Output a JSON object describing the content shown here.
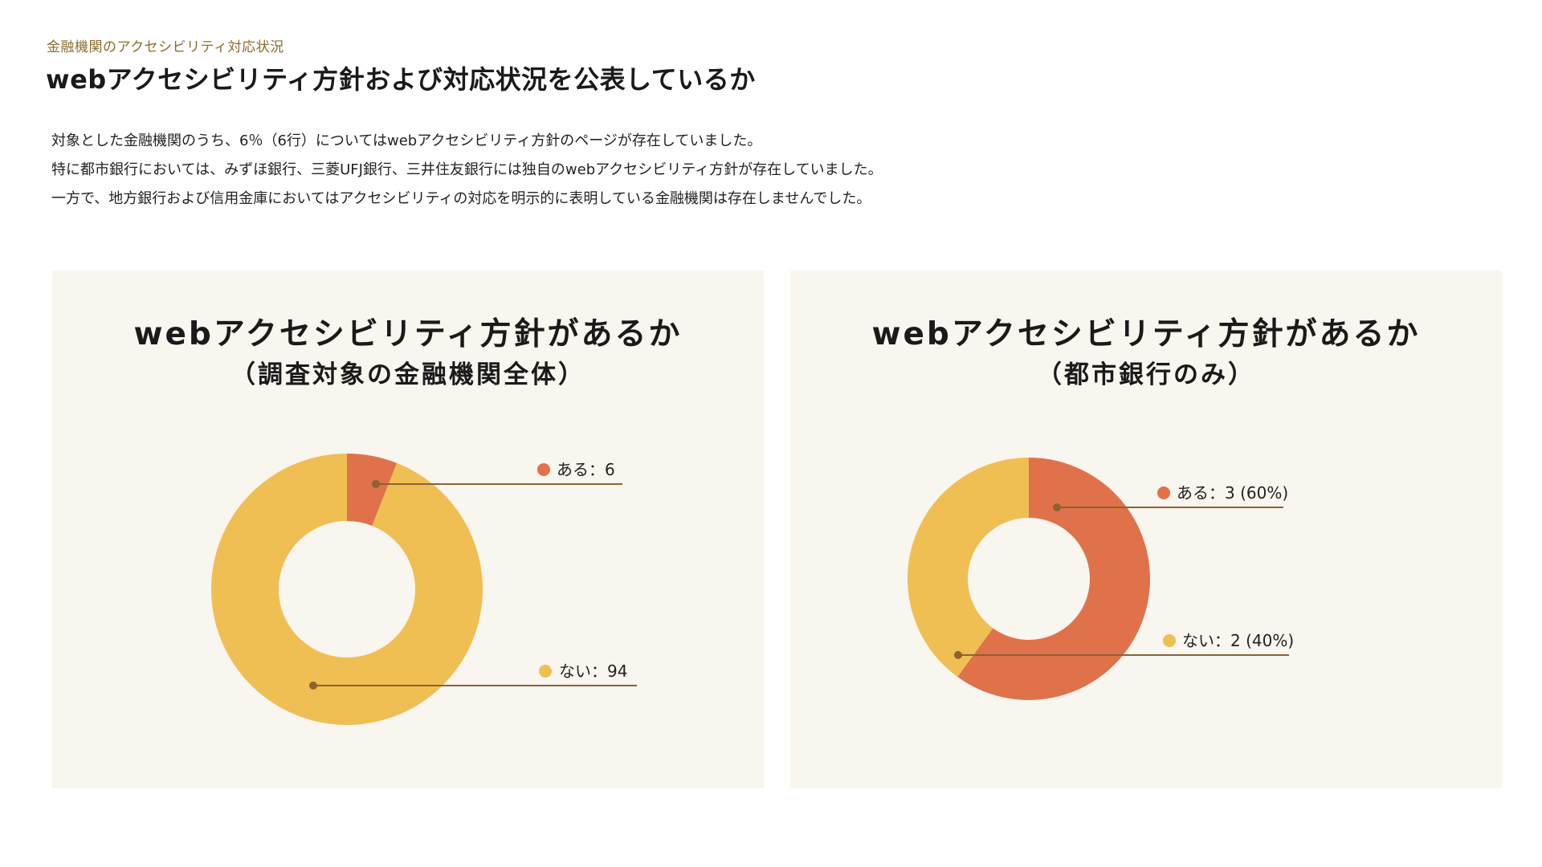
{
  "header": {
    "eyebrow": "金融機関のアクセシビリティ対応状況",
    "title": "webアクセシビリティ方針および対応状況を公表しているか"
  },
  "intro": [
    "対象とした金融機関のうち、6％（6行）についてはwebアクセシビリティ方針のページが存在していました。",
    "特に都市銀行においては、みずほ銀行、三菱UFJ銀行、三井住友銀行には独自のwebアクセシビリティ方針が存在していました。",
    "一方で、地方銀行および信用金庫においてはアクセシビリティの対応を明示的に表明している金融機関は存在しませんでした。"
  ],
  "colors": {
    "yes": "#df724a",
    "no": "#efbf53",
    "leader": "#8a6330",
    "card_bg": "#f9f5ef"
  },
  "chart_data": [
    {
      "type": "pie",
      "variant": "donut",
      "title": "webアクセシビリティ方針があるか",
      "subtitle": "（調査対象の金融機関全体）",
      "categories": [
        "ある",
        "ない"
      ],
      "values": [
        6,
        94
      ],
      "labels": [
        "ある：6",
        "ない：94"
      ],
      "colors": [
        "#df724a",
        "#efbf53"
      ]
    },
    {
      "type": "pie",
      "variant": "donut",
      "title": "webアクセシビリティ方針があるか",
      "subtitle": "（都市銀行のみ）",
      "categories": [
        "ある",
        "ない"
      ],
      "values": [
        3,
        2
      ],
      "labels": [
        "ある：3 (60%)",
        "ない：2 (40%)"
      ],
      "colors": [
        "#df724a",
        "#efbf53"
      ]
    }
  ]
}
